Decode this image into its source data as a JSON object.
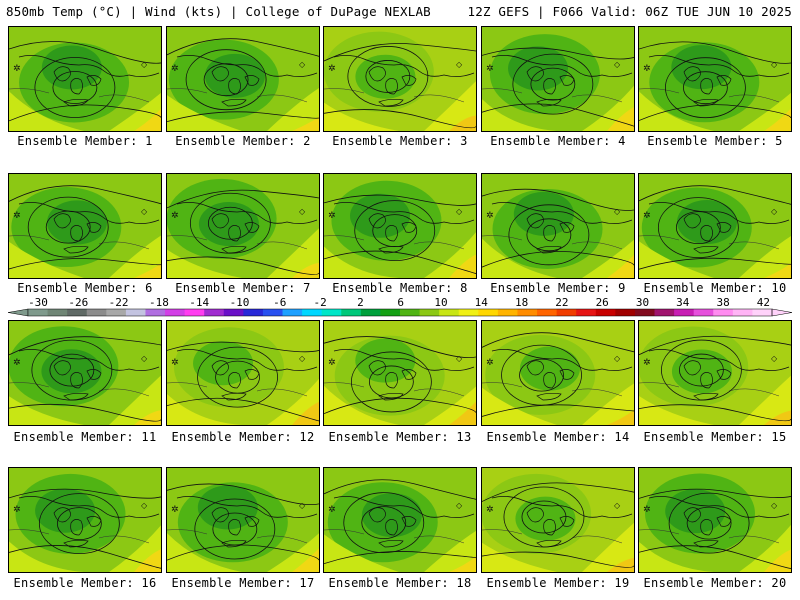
{
  "header": {
    "left": "850mb Temp (°C) | Wind (kts) | College of DuPage NEXLAB",
    "right": "12Z GEFS | F066 Valid: 06Z TUE JUN 10 2025"
  },
  "members": [
    {
      "label": "Ensemble Member: 1",
      "palette": "green"
    },
    {
      "label": "Ensemble Member: 2",
      "palette": "green"
    },
    {
      "label": "Ensemble Member: 3",
      "palette": "yellow"
    },
    {
      "label": "Ensemble Member: 4",
      "palette": "green"
    },
    {
      "label": "Ensemble Member: 5",
      "palette": "green"
    },
    {
      "label": "Ensemble Member: 6",
      "palette": "green"
    },
    {
      "label": "Ensemble Member: 7",
      "palette": "green"
    },
    {
      "label": "Ensemble Member: 8",
      "palette": "green"
    },
    {
      "label": "Ensemble Member: 9",
      "palette": "green"
    },
    {
      "label": "Ensemble Member: 10",
      "palette": "green"
    },
    {
      "label": "Ensemble Member: 11",
      "palette": "green"
    },
    {
      "label": "Ensemble Member: 12",
      "palette": "yellow"
    },
    {
      "label": "Ensemble Member: 13",
      "palette": "yellow"
    },
    {
      "label": "Ensemble Member: 14",
      "palette": "yellow"
    },
    {
      "label": "Ensemble Member: 15",
      "palette": "yellow"
    },
    {
      "label": "Ensemble Member: 16",
      "palette": "green"
    },
    {
      "label": "Ensemble Member: 17",
      "palette": "green"
    },
    {
      "label": "Ensemble Member: 18",
      "palette": "green"
    },
    {
      "label": "Ensemble Member: 19",
      "palette": "yellow"
    },
    {
      "label": "Ensemble Member: 20",
      "palette": "green"
    }
  ],
  "colorbar": {
    "ticks": [
      "-30",
      "-26",
      "-22",
      "-18",
      "-14",
      "-10",
      "-6",
      "-2",
      "2",
      "6",
      "10",
      "14",
      "18",
      "22",
      "26",
      "30",
      "34",
      "38",
      "42"
    ],
    "colors": [
      "#7f9a8c",
      "#6f8575",
      "#606a66",
      "#8c8c8c",
      "#a8a8a8",
      "#c3c3e0",
      "#b06ee0",
      "#d23ee6",
      "#ff3cf0",
      "#a02cd0",
      "#6a10c8",
      "#2828d8",
      "#2850f0",
      "#1ea0ff",
      "#00d7ff",
      "#00e6c8",
      "#00c87a",
      "#00a03c",
      "#14a014",
      "#50b414",
      "#8cc814",
      "#c8e614",
      "#f0f014",
      "#ffd700",
      "#ffb400",
      "#ff8c00",
      "#ff6400",
      "#f03c00",
      "#e61414",
      "#c80000",
      "#a00000",
      "#820a1e",
      "#a0146e",
      "#c81eb4",
      "#e650dc",
      "#ff8cf0",
      "#ffb4f5",
      "#ffd2fa"
    ]
  }
}
